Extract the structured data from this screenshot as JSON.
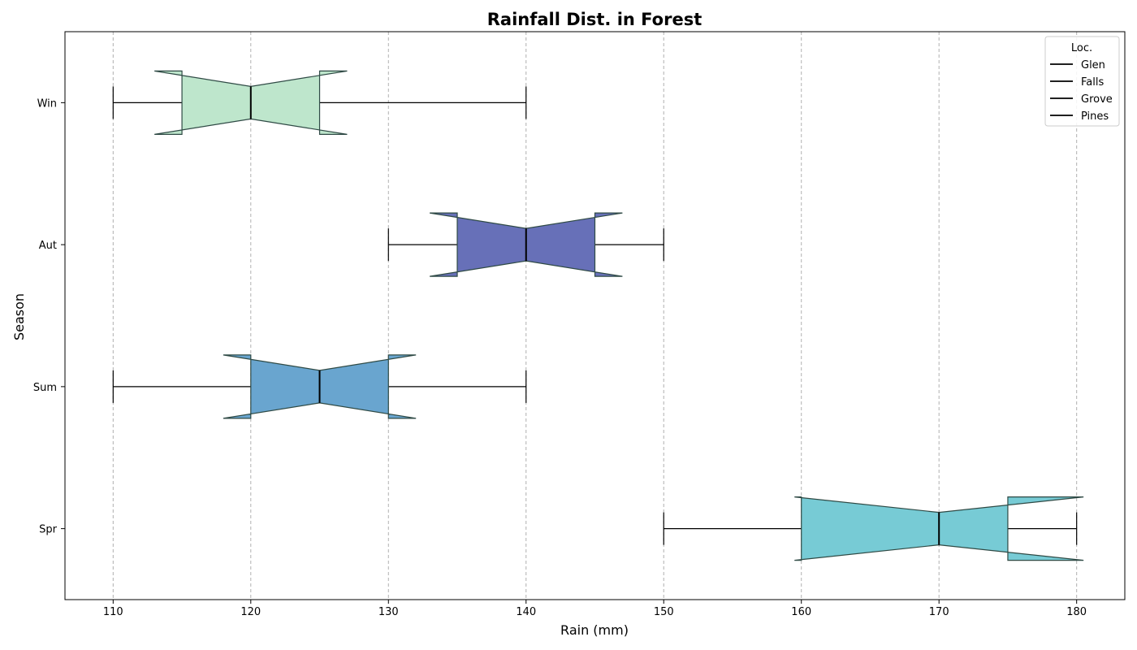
{
  "chart_data": {
    "type": "boxplot",
    "orientation": "horizontal",
    "notched": true,
    "title": "Rainfall Dist. in Forest",
    "xlabel": "Rain (mm)",
    "ylabel": "Season",
    "xlim": [
      106.5,
      183.5
    ],
    "xticks": [
      "110",
      "120",
      "130",
      "140",
      "150",
      "160",
      "170",
      "180"
    ],
    "grid": "vertical dashed",
    "categories": [
      "Spr",
      "Sum",
      "Aut",
      "Win"
    ],
    "boxes": [
      {
        "category": "Spr",
        "whislo": 150,
        "q1": 160,
        "med": 170,
        "q3": 175,
        "whishi": 180,
        "notch_lo": 159.5,
        "notch_hi": 180.5,
        "color": "#77cbd5"
      },
      {
        "category": "Sum",
        "whislo": 110,
        "q1": 120,
        "med": 125,
        "q3": 130,
        "whishi": 140,
        "notch_lo": 118,
        "notch_hi": 132,
        "color": "#69a5cf"
      },
      {
        "category": "Aut",
        "whislo": 130,
        "q1": 135,
        "med": 140,
        "q3": 145,
        "whishi": 150,
        "notch_lo": 133,
        "notch_hi": 147,
        "color": "#6770b8"
      },
      {
        "category": "Win",
        "whislo": 110,
        "q1": 115,
        "med": 120,
        "q3": 125,
        "whishi": 140,
        "notch_lo": 113,
        "notch_hi": 127,
        "color": "#bee6cc"
      }
    ],
    "legend": {
      "title": "Loc.",
      "placement": "top-right",
      "entries": [
        "Glen",
        "Falls",
        "Grove",
        "Pines"
      ]
    }
  }
}
